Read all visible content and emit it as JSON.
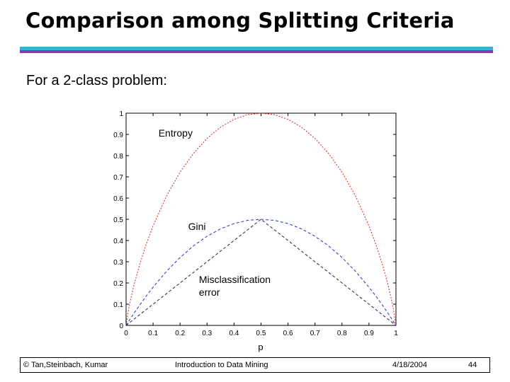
{
  "slide": {
    "title": "Comparison among Splitting Criteria",
    "subtitle": "For a 2-class problem:"
  },
  "chart_data": {
    "type": "line",
    "title": "",
    "xlabel": "p",
    "ylabel": "",
    "xlim": [
      0,
      1
    ],
    "ylim": [
      0,
      1
    ],
    "xticks": [
      "0",
      "0.1",
      "0.2",
      "0.3",
      "0.4",
      "0.5",
      "0.6",
      "0.7",
      "0.8",
      "0.9",
      "1"
    ],
    "yticks": [
      "0",
      "0.1",
      "0.2",
      "0.3",
      "0.4",
      "0.5",
      "0.6",
      "0.7",
      "0.8",
      "0.9",
      "1"
    ],
    "x": [
      0,
      0.01,
      0.02,
      0.03,
      0.05,
      0.075,
      0.1,
      0.15,
      0.2,
      0.25,
      0.3,
      0.35,
      0.4,
      0.45,
      0.5,
      0.55,
      0.6,
      0.65,
      0.7,
      0.75,
      0.8,
      0.85,
      0.9,
      0.925,
      0.95,
      0.97,
      0.98,
      0.99,
      1
    ],
    "series": [
      {
        "name": "Entropy",
        "color": "#e02020",
        "dash": "2,2",
        "label": "Entropy",
        "values": [
          0,
          0.081,
          0.141,
          0.194,
          0.286,
          0.384,
          0.469,
          0.61,
          0.722,
          0.811,
          0.881,
          0.934,
          0.971,
          0.993,
          1,
          0.993,
          0.971,
          0.934,
          0.881,
          0.811,
          0.722,
          0.61,
          0.469,
          0.384,
          0.286,
          0.194,
          0.141,
          0.081,
          0
        ]
      },
      {
        "name": "Gini",
        "color": "#2030d0",
        "dash": "4,3",
        "label": "Gini",
        "values": [
          0,
          0.0198,
          0.0392,
          0.0582,
          0.095,
          0.139,
          0.18,
          0.255,
          0.32,
          0.375,
          0.42,
          0.455,
          0.48,
          0.495,
          0.5,
          0.495,
          0.48,
          0.455,
          0.42,
          0.375,
          0.32,
          0.255,
          0.18,
          0.139,
          0.095,
          0.0582,
          0.0392,
          0.0198,
          0
        ]
      },
      {
        "name": "Misclassification error",
        "color": "#202050",
        "dash": "4,3",
        "label": "Misclassification\nerror",
        "values": [
          0,
          0.01,
          0.02,
          0.03,
          0.05,
          0.075,
          0.1,
          0.15,
          0.2,
          0.25,
          0.3,
          0.35,
          0.4,
          0.45,
          0.5,
          0.45,
          0.4,
          0.35,
          0.3,
          0.25,
          0.2,
          0.15,
          0.1,
          0.075,
          0.05,
          0.03,
          0.02,
          0.01,
          0
        ]
      }
    ],
    "annotations": [
      {
        "text": "Entropy",
        "x": 0.12,
        "y": 0.89
      },
      {
        "text": "Gini",
        "x": 0.23,
        "y": 0.45
      },
      {
        "text": "Misclassification",
        "x": 0.27,
        "y": 0.2
      },
      {
        "text": "error",
        "x": 0.27,
        "y": 0.14
      }
    ]
  },
  "footer": {
    "copyright": "© Tan,Steinbach, Kumar",
    "course": "Introduction to Data Mining",
    "date": "4/18/2004",
    "page": "44"
  }
}
